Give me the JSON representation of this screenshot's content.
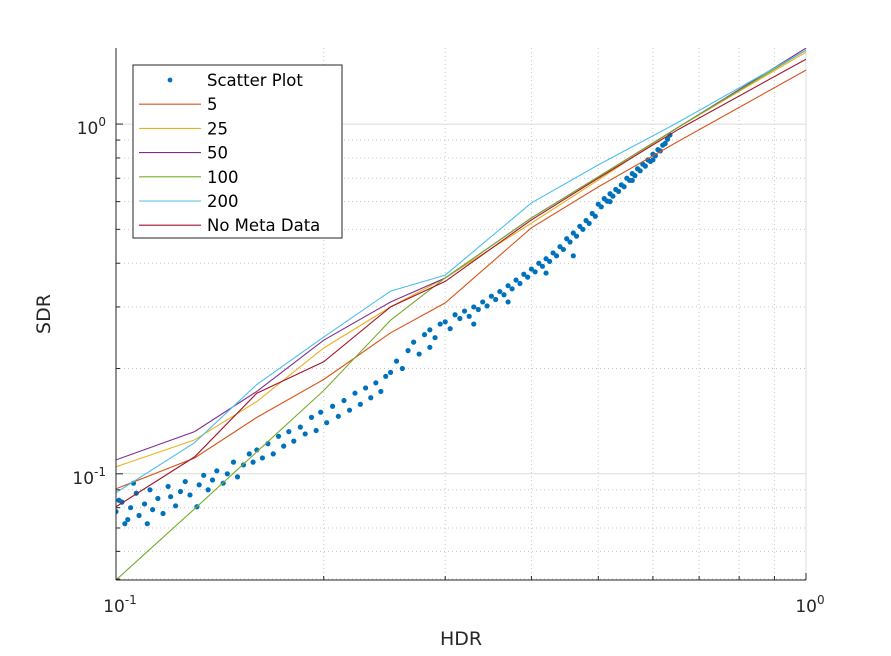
{
  "chart_data": {
    "type": "line",
    "title": "",
    "xlabel": "HDR",
    "ylabel": "SDR",
    "xscale": "log",
    "yscale": "log",
    "xlim": [
      0.1,
      1
    ],
    "ylim": [
      0.0497,
      1.65
    ],
    "grid": "on (major solid, minor dotted)",
    "legend_position": "top-left",
    "x_tick_labels": [
      {
        "value": 0.1,
        "base": "10",
        "exp": "-1"
      },
      {
        "value": 1,
        "base": "10",
        "exp": "0"
      }
    ],
    "y_tick_labels": [
      {
        "value": 0.1,
        "base": "10",
        "exp": "-1"
      },
      {
        "value": 1,
        "base": "10",
        "exp": "0"
      }
    ],
    "scatter": {
      "name": "Scatter Plot",
      "color": "#0072BD",
      "points": [
        [
          0.1,
          0.078
        ],
        [
          0.101,
          0.084
        ],
        [
          0.102,
          0.083
        ],
        [
          0.103,
          0.072
        ],
        [
          0.104,
          0.074
        ],
        [
          0.105,
          0.08
        ],
        [
          0.106,
          0.094
        ],
        [
          0.107,
          0.088
        ],
        [
          0.108,
          0.076
        ],
        [
          0.11,
          0.082
        ],
        [
          0.111,
          0.072
        ],
        [
          0.112,
          0.09
        ],
        [
          0.113,
          0.079
        ],
        [
          0.115,
          0.085
        ],
        [
          0.117,
          0.077
        ],
        [
          0.119,
          0.092
        ],
        [
          0.12,
          0.086
        ],
        [
          0.122,
          0.081
        ],
        [
          0.124,
          0.089
        ],
        [
          0.126,
          0.095
        ],
        [
          0.128,
          0.087
        ],
        [
          0.131,
          0.0805
        ],
        [
          0.132,
          0.093
        ],
        [
          0.134,
          0.099
        ],
        [
          0.136,
          0.09
        ],
        [
          0.138,
          0.096
        ],
        [
          0.14,
          0.102
        ],
        [
          0.143,
          0.094
        ],
        [
          0.145,
          0.1
        ],
        [
          0.148,
          0.108
        ],
        [
          0.15,
          0.098
        ],
        [
          0.153,
          0.106
        ],
        [
          0.156,
          0.114
        ],
        [
          0.158,
          0.108
        ],
        [
          0.16,
          0.117
        ],
        [
          0.163,
          0.111
        ],
        [
          0.166,
          0.122
        ],
        [
          0.169,
          0.114
        ],
        [
          0.172,
          0.128
        ],
        [
          0.175,
          0.12
        ],
        [
          0.178,
          0.132
        ],
        [
          0.181,
          0.124
        ],
        [
          0.185,
          0.136
        ],
        [
          0.188,
          0.13
        ],
        [
          0.192,
          0.145
        ],
        [
          0.195,
          0.133
        ],
        [
          0.198,
          0.15
        ],
        [
          0.202,
          0.14
        ],
        [
          0.206,
          0.156
        ],
        [
          0.21,
          0.146
        ],
        [
          0.214,
          0.162
        ],
        [
          0.218,
          0.152
        ],
        [
          0.222,
          0.17
        ],
        [
          0.226,
          0.158
        ],
        [
          0.23,
          0.176
        ],
        [
          0.234,
          0.165
        ],
        [
          0.238,
          0.182
        ],
        [
          0.242,
          0.172
        ],
        [
          0.246,
          0.19
        ],
        [
          0.25,
          0.195
        ],
        [
          0.255,
          0.21
        ],
        [
          0.26,
          0.2
        ],
        [
          0.265,
          0.225
        ],
        [
          0.27,
          0.238
        ],
        [
          0.275,
          0.22
        ],
        [
          0.28,
          0.25
        ],
        [
          0.285,
          0.258
        ],
        [
          0.29,
          0.245
        ],
        [
          0.295,
          0.268
        ],
        [
          0.3,
          0.272
        ],
        [
          0.305,
          0.26
        ],
        [
          0.31,
          0.285
        ],
        [
          0.315,
          0.278
        ],
        [
          0.32,
          0.292
        ],
        [
          0.325,
          0.282
        ],
        [
          0.33,
          0.3
        ],
        [
          0.335,
          0.295
        ],
        [
          0.34,
          0.31
        ],
        [
          0.345,
          0.302
        ],
        [
          0.35,
          0.322
        ],
        [
          0.355,
          0.315
        ],
        [
          0.36,
          0.332
        ],
        [
          0.365,
          0.325
        ],
        [
          0.37,
          0.345
        ],
        [
          0.375,
          0.338
        ],
        [
          0.38,
          0.358
        ],
        [
          0.385,
          0.35
        ],
        [
          0.39,
          0.372
        ],
        [
          0.395,
          0.365
        ],
        [
          0.4,
          0.385
        ],
        [
          0.405,
          0.378
        ],
        [
          0.41,
          0.4
        ],
        [
          0.415,
          0.392
        ],
        [
          0.42,
          0.412
        ],
        [
          0.425,
          0.405
        ],
        [
          0.43,
          0.428
        ],
        [
          0.435,
          0.42
        ],
        [
          0.44,
          0.446
        ],
        [
          0.445,
          0.438
        ],
        [
          0.45,
          0.47
        ],
        [
          0.455,
          0.46
        ],
        [
          0.46,
          0.488
        ],
        [
          0.465,
          0.478
        ],
        [
          0.47,
          0.51
        ],
        [
          0.475,
          0.5
        ],
        [
          0.48,
          0.53
        ],
        [
          0.485,
          0.52
        ],
        [
          0.49,
          0.555
        ],
        [
          0.495,
          0.545
        ],
        [
          0.5,
          0.59
        ],
        [
          0.505,
          0.58
        ],
        [
          0.51,
          0.612
        ],
        [
          0.515,
          0.602
        ],
        [
          0.52,
          0.632
        ],
        [
          0.525,
          0.622
        ],
        [
          0.53,
          0.65
        ],
        [
          0.535,
          0.642
        ],
        [
          0.54,
          0.67
        ],
        [
          0.545,
          0.662
        ],
        [
          0.55,
          0.7
        ],
        [
          0.555,
          0.69
        ],
        [
          0.56,
          0.722
        ],
        [
          0.565,
          0.712
        ],
        [
          0.57,
          0.745
        ],
        [
          0.575,
          0.735
        ],
        [
          0.58,
          0.768
        ],
        [
          0.585,
          0.758
        ],
        [
          0.59,
          0.79
        ],
        [
          0.595,
          0.782
        ],
        [
          0.6,
          0.82
        ],
        [
          0.605,
          0.812
        ],
        [
          0.61,
          0.845
        ],
        [
          0.615,
          0.838
        ],
        [
          0.62,
          0.87
        ],
        [
          0.625,
          0.88
        ],
        [
          0.63,
          0.905
        ],
        [
          0.635,
          0.93
        ],
        [
          0.285,
          0.23
        ],
        [
          0.33,
          0.268
        ],
        [
          0.37,
          0.31
        ],
        [
          0.42,
          0.375
        ],
        [
          0.46,
          0.42
        ],
        [
          0.52,
          0.6
        ],
        [
          0.56,
          0.69
        ],
        [
          0.6,
          0.79
        ]
      ]
    },
    "x": [
      0.1,
      0.13,
      0.16,
      0.2,
      0.25,
      0.3,
      0.4,
      0.5,
      0.65,
      1.0
    ],
    "series": [
      {
        "name": "5",
        "color": "#D95319",
        "values": [
          0.0906,
          0.111,
          0.145,
          0.186,
          0.253,
          0.308,
          0.505,
          0.661,
          0.888,
          1.427
        ]
      },
      {
        "name": "25",
        "color": "#EDB120",
        "values": [
          0.1047,
          0.125,
          0.161,
          0.229,
          0.3,
          0.363,
          0.521,
          0.692,
          0.974,
          1.606
        ]
      },
      {
        "name": "50",
        "color": "#7E2F8E",
        "values": [
          0.1096,
          0.132,
          0.172,
          0.241,
          0.31,
          0.363,
          0.539,
          0.706,
          0.974,
          1.649
        ]
      },
      {
        "name": "100",
        "color": "#77AC30",
        "values": [
          0.0497,
          0.0794,
          0.1156,
          0.173,
          0.275,
          0.363,
          0.539,
          0.706,
          0.974,
          1.627
        ]
      },
      {
        "name": "200",
        "color": "#4DBEEE",
        "values": [
          0.0883,
          0.1227,
          0.18,
          0.246,
          0.333,
          0.37,
          0.595,
          0.764,
          1.007,
          1.627
        ]
      },
      {
        "name": "No Meta Data",
        "color": "#A2142F",
        "values": [
          0.0805,
          0.1118,
          0.17,
          0.209,
          0.3,
          0.355,
          0.532,
          0.7,
          0.96,
          1.533
        ]
      }
    ]
  }
}
